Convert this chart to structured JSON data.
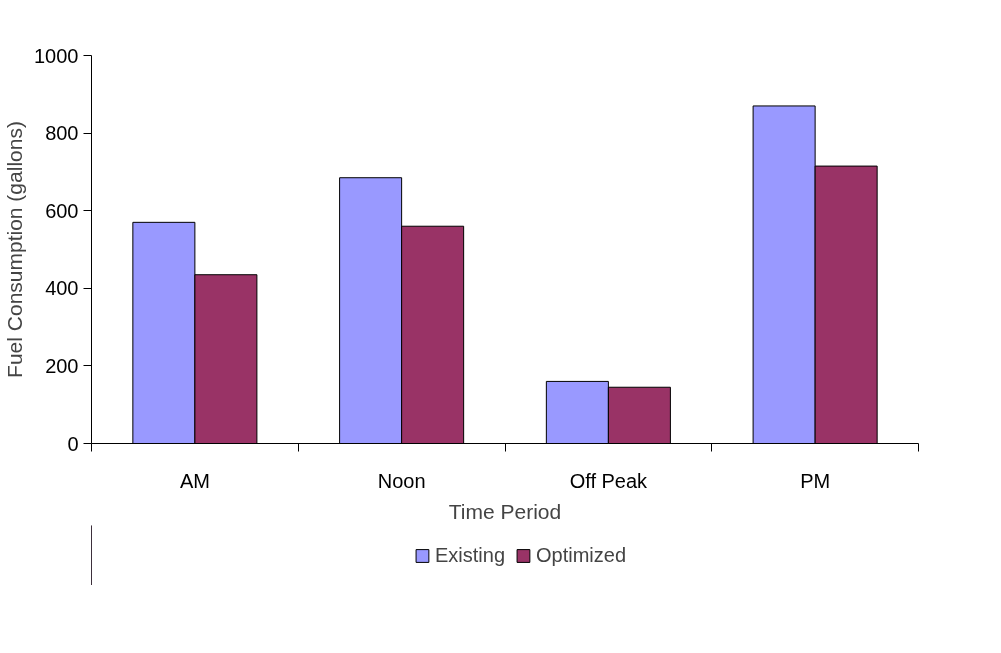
{
  "chart_data": {
    "type": "bar",
    "xlabel": "Time Period",
    "ylabel": "Fuel Consumption (gallons)",
    "categories": [
      "AM",
      "Noon",
      "Off Peak",
      "PM"
    ],
    "series": [
      {
        "name": "Existing",
        "color": "#9999ff",
        "values": [
          570,
          685,
          160,
          870
        ]
      },
      {
        "name": "Optimized",
        "color": "#993366",
        "values": [
          435,
          560,
          145,
          715
        ]
      }
    ],
    "ylim": [
      0,
      1000
    ],
    "yticks": [
      0,
      200,
      400,
      600,
      800,
      1000
    ],
    "grid": false,
    "legend": "bottom"
  }
}
